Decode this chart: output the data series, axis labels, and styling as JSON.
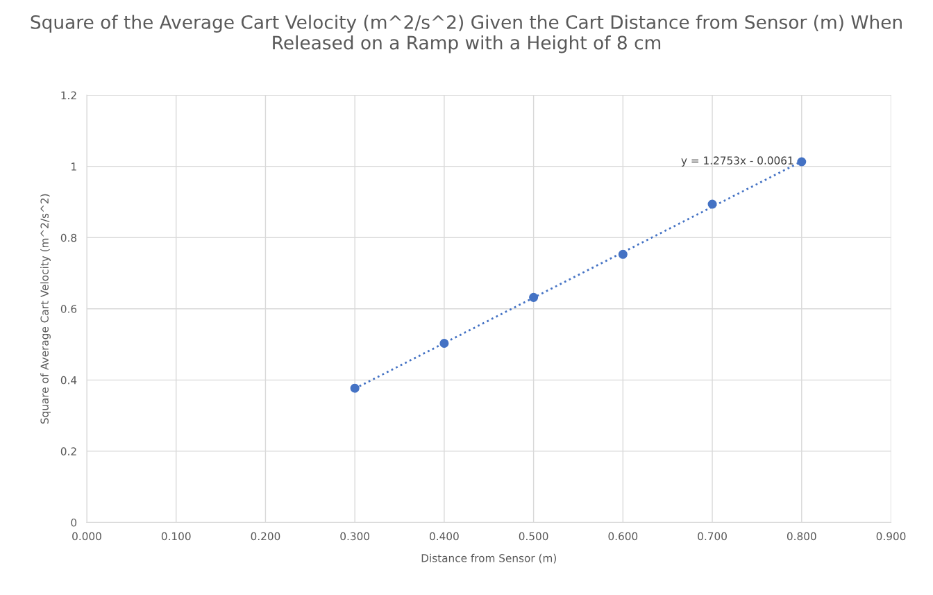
{
  "chart_data": {
    "type": "scatter",
    "title": "Square of the Average Cart Velocity (m^2/s^2) Given the Cart Distance from Sensor (m) When Released on a Ramp with a Height of 8 cm",
    "xlabel": "Distance from Sensor (m)",
    "ylabel": "Square of Average Cart Velocity (m^2/s^2)",
    "series": [
      {
        "color": "#4472c4",
        "x": [
          0.3,
          0.4,
          0.5,
          0.6,
          0.7,
          0.8
        ],
        "values": [
          0.377,
          0.503,
          0.632,
          0.753,
          0.894,
          1.013
        ],
        "marker": "circle"
      },
      {
        "type": "line",
        "color": "#4472c4",
        "x": [
          0.3,
          0.8
        ],
        "values": [
          0.376,
          1.014
        ],
        "line_style": "dotted"
      }
    ],
    "annotations": [
      {
        "text": "y = 1.2753x - 0.0061",
        "x": 0.8,
        "y": 1.014
      }
    ],
    "xlim": [
      0,
      0.9
    ],
    "ylim": [
      0,
      1.2
    ],
    "xticks": [
      {
        "value": 0,
        "label": "0.000"
      },
      {
        "value": 0.1,
        "label": "0.100"
      },
      {
        "value": 0.2,
        "label": "0.200"
      },
      {
        "value": 0.3,
        "label": "0.300"
      },
      {
        "value": 0.4,
        "label": "0.400"
      },
      {
        "value": 0.5,
        "label": "0.500"
      },
      {
        "value": 0.6,
        "label": "0.600"
      },
      {
        "value": 0.7,
        "label": "0.700"
      },
      {
        "value": 0.8,
        "label": "0.800"
      },
      {
        "value": 0.9,
        "label": "0.900"
      }
    ],
    "yticks": [
      0,
      0.2,
      0.4,
      0.6,
      0.8,
      1,
      1.2
    ],
    "grid": true,
    "legend": false
  }
}
